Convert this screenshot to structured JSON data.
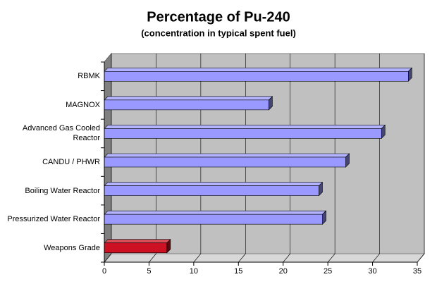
{
  "chart_data": {
    "type": "bar",
    "orientation": "horizontal",
    "title": "Percentage of Pu-240",
    "subtitle": "(concentration in typical spent fuel)",
    "categories": [
      "RBMK",
      "MAGNOX",
      "Advanced Gas Cooled Reactor",
      "CANDU / PHWR",
      "Boiling Water Reactor",
      "Pressurized Water Reactor",
      "Weapons Grade"
    ],
    "values": [
      34,
      18.4,
      31,
      27,
      24,
      24.4,
      7
    ],
    "colors": [
      "#9999ff",
      "#9999ff",
      "#9999ff",
      "#9999ff",
      "#9999ff",
      "#9999ff",
      "#cc1122"
    ],
    "xlim": [
      0,
      35
    ],
    "xticks": [
      0,
      5,
      10,
      15,
      20,
      25,
      30,
      35
    ],
    "grid": true
  }
}
